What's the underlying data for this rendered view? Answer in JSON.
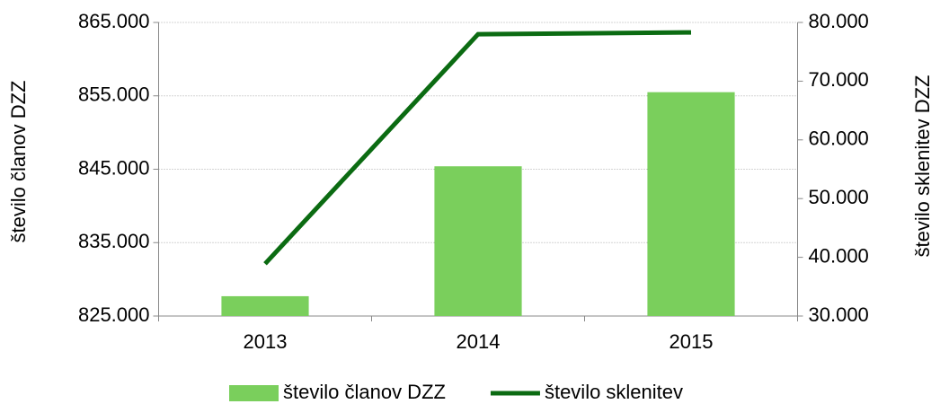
{
  "chart_data": {
    "type": "bar",
    "categories": [
      "2013",
      "2014",
      "2015"
    ],
    "series": [
      {
        "name": "število članov DZZ",
        "color": "#7acf5c",
        "values": [
          827700,
          845400,
          855500
        ]
      },
      {
        "name": "število sklenitev",
        "color": "#0b6b12",
        "values": [
          38900,
          78000,
          78300
        ],
        "axis": "y2",
        "type": "line"
      }
    ],
    "ylabel": "število članov DZZ",
    "y2label": "število sklenitev DZZ",
    "ylim": [
      825000,
      865000
    ],
    "yticks": [
      {
        "value": 825000,
        "label": "825.000"
      },
      {
        "value": 835000,
        "label": "835.000"
      },
      {
        "value": 845000,
        "label": "845.000"
      },
      {
        "value": 855000,
        "label": "855.000"
      },
      {
        "value": 865000,
        "label": "865.000"
      }
    ],
    "y2lim": [
      30000,
      80000
    ],
    "y2ticks": [
      {
        "value": 30000,
        "label": "30.000"
      },
      {
        "value": 40000,
        "label": "40.000"
      },
      {
        "value": 50000,
        "label": "50.000"
      },
      {
        "value": 60000,
        "label": "60.000"
      },
      {
        "value": 70000,
        "label": "70.000"
      },
      {
        "value": 80000,
        "label": "80.000"
      }
    ],
    "grid": true,
    "legend": "bottom"
  }
}
